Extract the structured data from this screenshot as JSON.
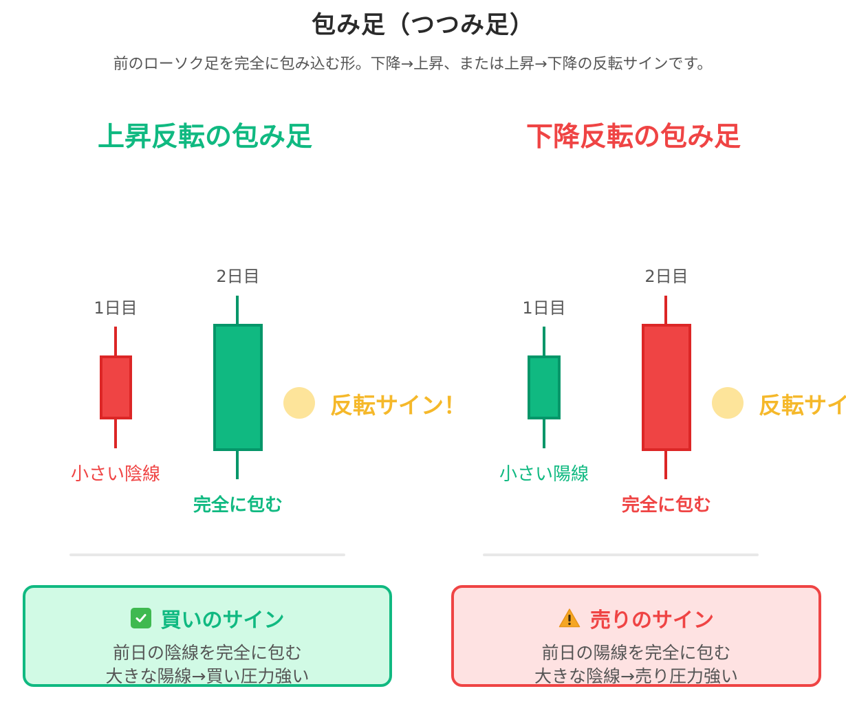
{
  "header": {
    "title": "包み足（つつみ足）",
    "subtitle": "前のローソク足を完全に包み込む形。下降→上昇、または上昇→下降の反転サインです。"
  },
  "colors": {
    "green": "#10b981",
    "green_dark": "#059669",
    "red": "#ef4444",
    "red_dark": "#dc2626",
    "yellow": "#f5b82a",
    "yellow_light": "#fde49a"
  },
  "bullish": {
    "heading": "上昇反転の包み足",
    "day1_label": "1日目",
    "day2_label": "2日目",
    "small_caption": "小さい陰線",
    "big_caption": "完全に包む",
    "sign_text": "反転サイン！",
    "card": {
      "icon": "check-icon",
      "title": "買いのサイン",
      "line1": "前日の陰線を完全に包む",
      "line2": "大きな陽線→買い圧力強い"
    }
  },
  "bearish": {
    "heading": "下降反転の包み足",
    "day1_label": "1日目",
    "day2_label": "2日目",
    "small_caption": "小さい陽線",
    "big_caption": "完全に包む",
    "sign_text": "反転サイン！",
    "card": {
      "icon": "warning-icon",
      "title": "売りのサイン",
      "line1": "前日の陽線を完全に包む",
      "line2": "大きな陰線→売り圧力強い"
    }
  }
}
